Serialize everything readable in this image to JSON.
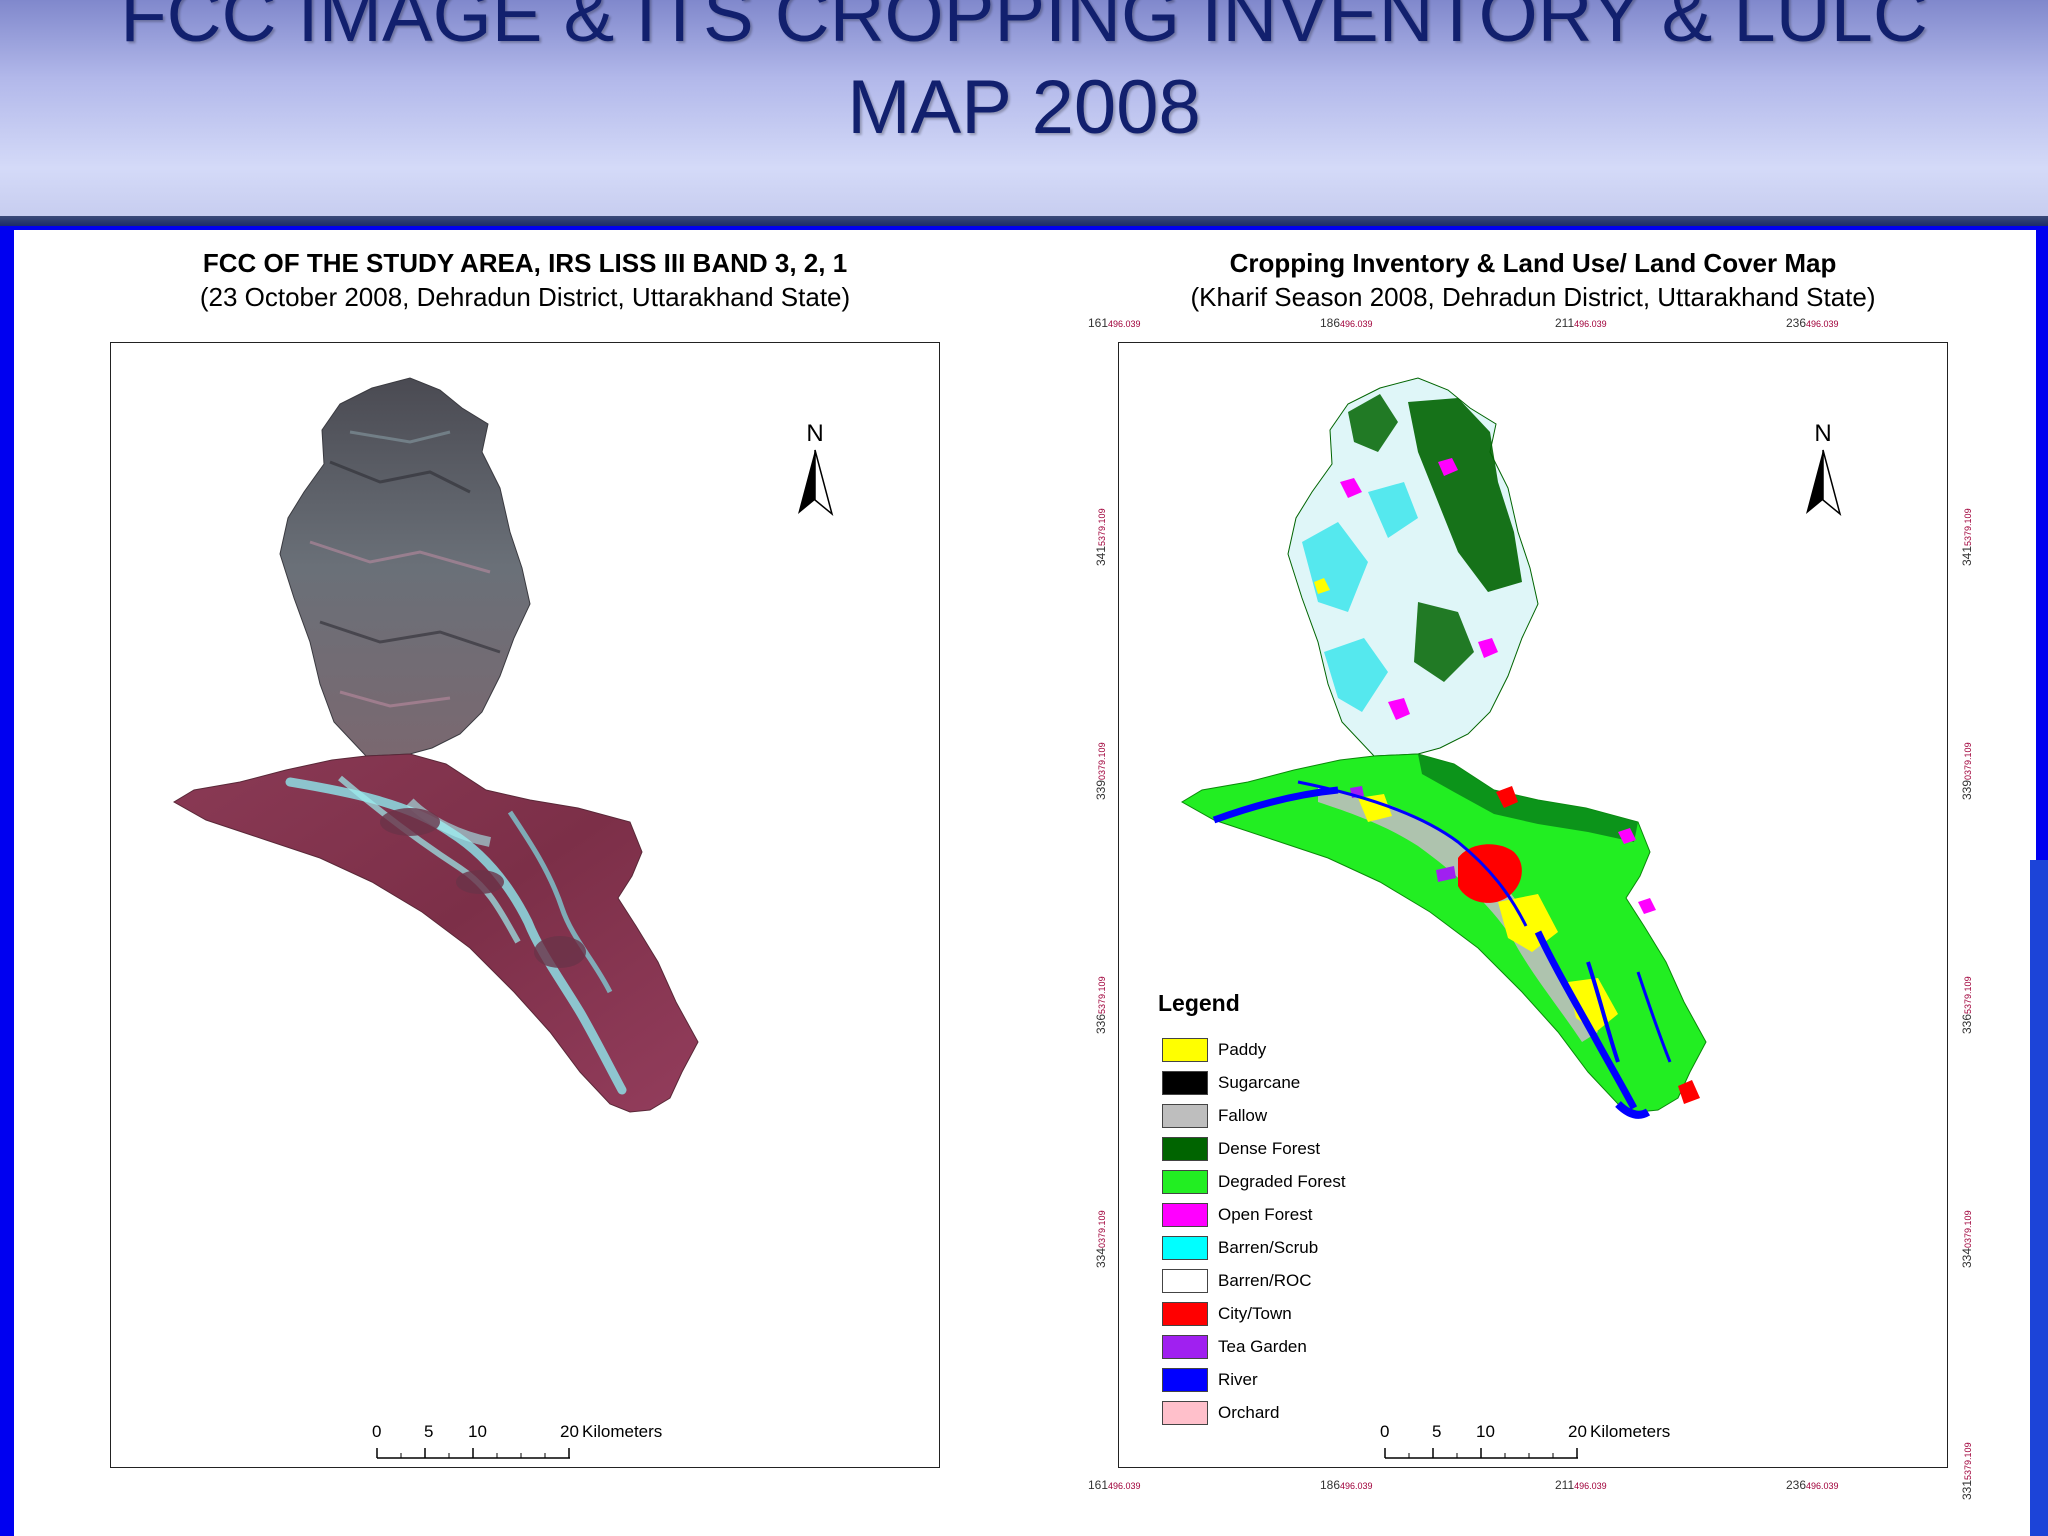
{
  "slide": {
    "title_line1": "FCC IMAGE & ITS CROPPING INVENTORY & LULC",
    "title_line2": "MAP 2008"
  },
  "left_panel": {
    "title": "FCC OF THE STUDY AREA, IRS LISS III BAND 3, 2, 1",
    "subtitle": "(23 October 2008, Dehradun District, Uttarakhand State)",
    "north": "N",
    "scale": {
      "ticks": [
        "0",
        "5",
        "10",
        "20"
      ],
      "unit": "Kilometers"
    }
  },
  "right_panel": {
    "title": "Cropping Inventory & Land Use/ Land Cover Map",
    "subtitle": "(Kharif Season 2008, Dehradun District, Uttarakhand State)",
    "north": "N",
    "scale": {
      "ticks": [
        "0",
        "5",
        "10",
        "20"
      ],
      "unit": "Kilometers"
    },
    "grid_top": [
      {
        "main": "161",
        "sup": "496.039"
      },
      {
        "main": "186",
        "sup": "496.039"
      },
      {
        "main": "211",
        "sup": "496.039"
      },
      {
        "main": "236",
        "sup": "496.039"
      }
    ],
    "grid_bottom": [
      {
        "main": "161",
        "sup": "496.039"
      },
      {
        "main": "186",
        "sup": "496.039"
      },
      {
        "main": "211",
        "sup": "496.039"
      },
      {
        "main": "236",
        "sup": "496.039"
      }
    ],
    "grid_side": [
      {
        "main": "341",
        "sup": "5379.109"
      },
      {
        "main": "339",
        "sup": "0379.109"
      },
      {
        "main": "336",
        "sup": "5379.109"
      },
      {
        "main": "334",
        "sup": "0379.109"
      },
      {
        "main": "331",
        "sup": "5379.109"
      }
    ],
    "legend": {
      "title": "Legend",
      "items": [
        {
          "label": "Paddy",
          "color": "#ffff00"
        },
        {
          "label": "Sugarcane",
          "color": "#000000"
        },
        {
          "label": "Fallow",
          "color": "#bebebe"
        },
        {
          "label": "Dense Forest",
          "color": "#006400"
        },
        {
          "label": "Degraded Forest",
          "color": "#22ee22"
        },
        {
          "label": "Open Forest",
          "color": "#ff00ff"
        },
        {
          "label": "Barren/Scrub",
          "color": "#00ffff"
        },
        {
          "label": "Barren/ROC",
          "color": "#ffffff"
        },
        {
          "label": "City/Town",
          "color": "#ff0000"
        },
        {
          "label": "Tea Garden",
          "color": "#a020f0"
        },
        {
          "label": "River",
          "color": "#0000ff"
        },
        {
          "label": "Orchard",
          "color": "#ffc0cb"
        }
      ]
    }
  }
}
